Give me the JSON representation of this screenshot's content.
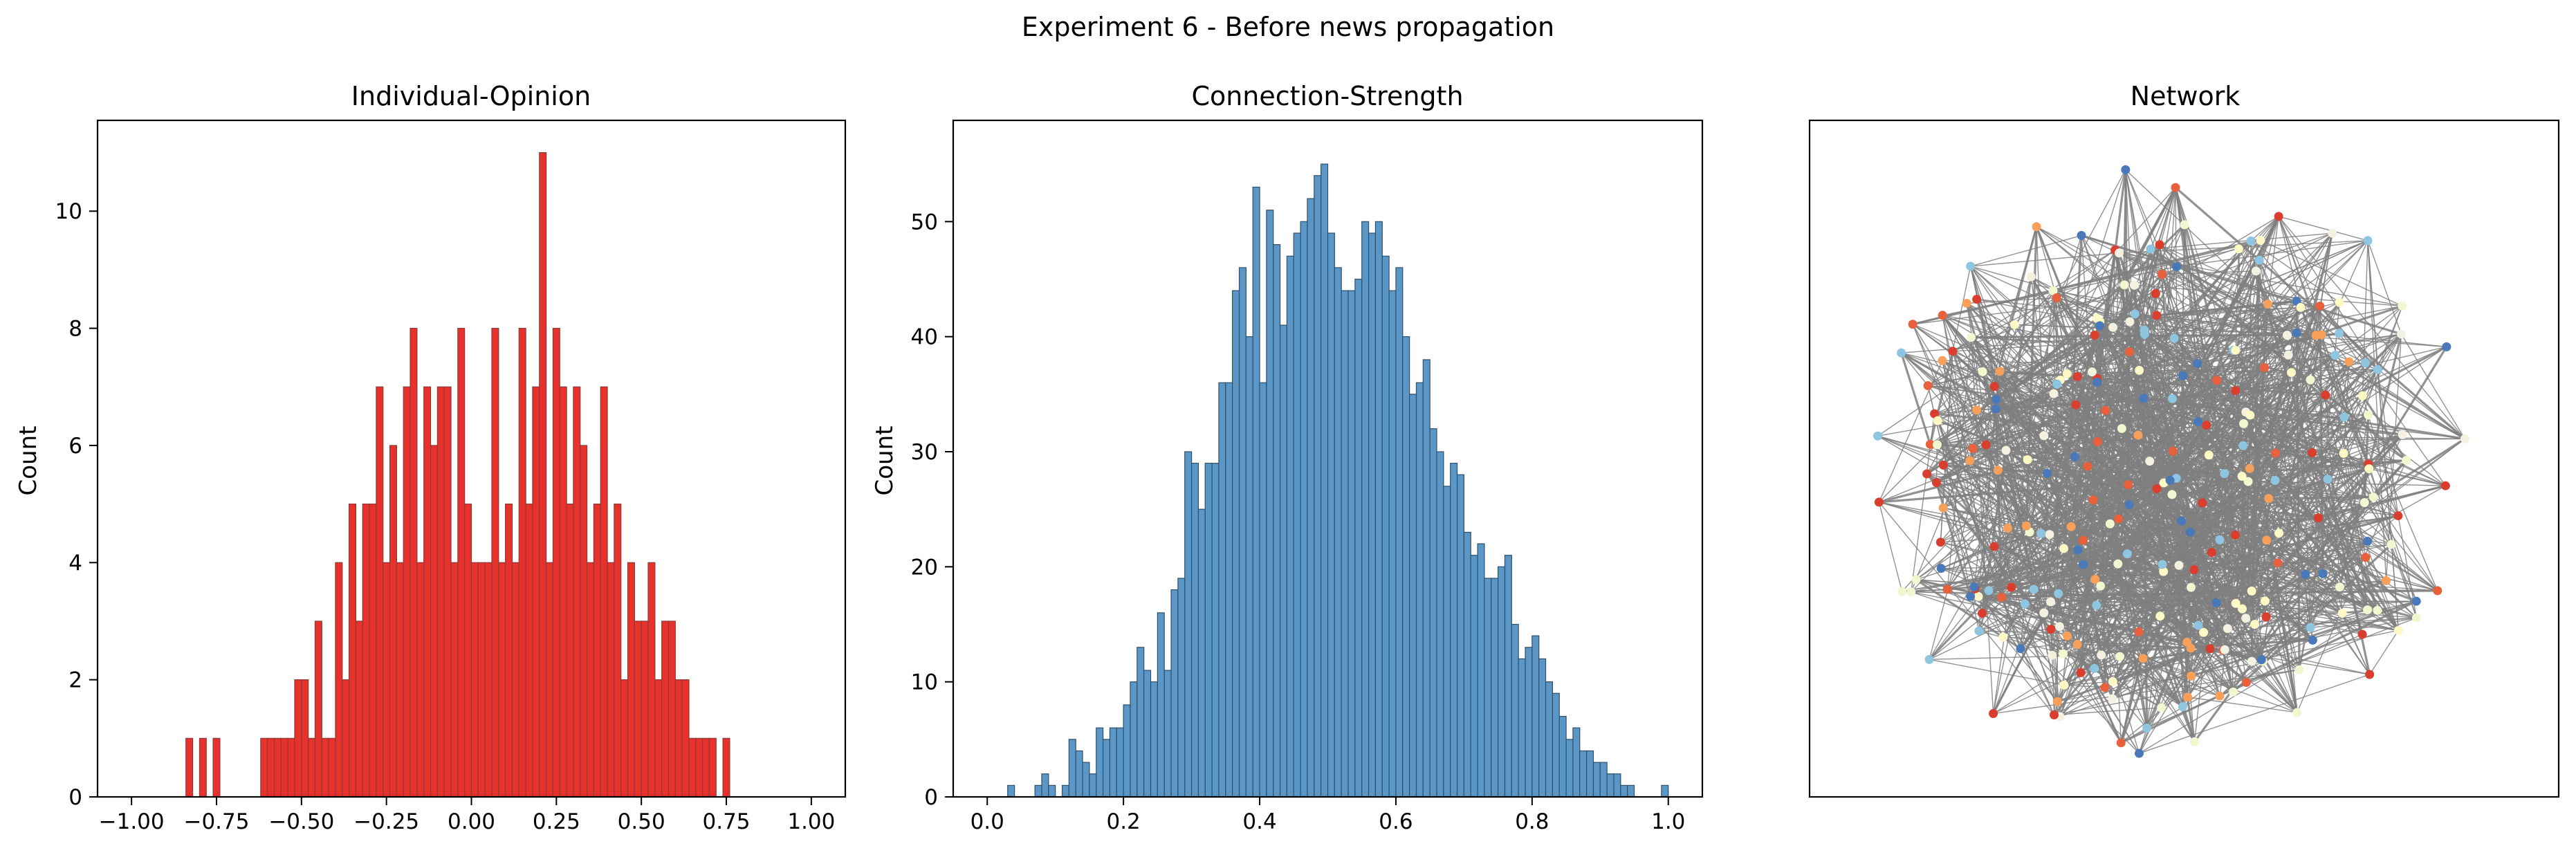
{
  "suptitle": "Experiment 6 - Before news propagation",
  "chart_data": [
    {
      "type": "bar",
      "title": "Individual-Opinion",
      "xlabel": "",
      "ylabel": "Count",
      "xlim": [
        -1.1,
        1.1
      ],
      "ylim": [
        0,
        11.55
      ],
      "xticks": [
        -1.0,
        -0.75,
        -0.5,
        -0.25,
        0.0,
        0.25,
        0.5,
        0.75,
        1.0
      ],
      "xtick_labels": [
        "−1.00",
        "−0.75",
        "−0.50",
        "−0.25",
        "0.00",
        "0.25",
        "0.50",
        "0.75",
        "1.00"
      ],
      "yticks": [
        0,
        2,
        4,
        6,
        8,
        10
      ],
      "ytick_labels": [
        "0",
        "2",
        "4",
        "6",
        "8",
        "10"
      ],
      "bin_range": [
        -1.0,
        1.0
      ],
      "bin_count": 100,
      "bar_color": "#e8312a",
      "edge_color": "#8a3a3a",
      "counts": [
        0,
        0,
        0,
        0,
        0,
        0,
        0,
        0,
        1,
        0,
        1,
        0,
        1,
        0,
        0,
        0,
        0,
        0,
        0,
        1,
        1,
        1,
        1,
        1,
        2,
        2,
        1,
        3,
        1,
        1,
        4,
        2,
        5,
        3,
        5,
        5,
        7,
        4,
        6,
        4,
        7,
        8,
        4,
        7,
        6,
        7,
        7,
        4,
        8,
        5,
        4,
        4,
        4,
        8,
        4,
        5,
        4,
        8,
        5,
        7,
        11,
        4,
        8,
        7,
        5,
        7,
        6,
        4,
        5,
        7,
        4,
        5,
        2,
        4,
        3,
        3,
        4,
        2,
        3,
        3,
        2,
        2,
        1,
        1,
        1,
        1,
        0,
        1,
        0,
        0,
        0,
        0,
        0,
        0,
        0,
        0,
        0,
        0,
        0,
        0
      ]
    },
    {
      "type": "bar",
      "title": "Connection-Strength",
      "xlabel": "",
      "ylabel": "Count",
      "xlim": [
        -0.05,
        1.05
      ],
      "ylim": [
        0,
        58.8
      ],
      "xticks": [
        0.0,
        0.2,
        0.4,
        0.6,
        0.8,
        1.0
      ],
      "xtick_labels": [
        "0.0",
        "0.2",
        "0.4",
        "0.6",
        "0.8",
        "1.0"
      ],
      "yticks": [
        0,
        10,
        20,
        30,
        40,
        50
      ],
      "ytick_labels": [
        "0",
        "10",
        "20",
        "30",
        "40",
        "50"
      ],
      "bin_range": [
        0.0,
        1.0
      ],
      "bin_count": 100,
      "bar_color": "#5b97c6",
      "edge_color": "#2f4f6a",
      "counts": [
        0,
        0,
        0,
        1,
        0,
        0,
        0,
        1,
        2,
        1,
        0,
        1,
        5,
        4,
        3,
        2,
        6,
        5,
        6,
        6,
        8,
        10,
        13,
        11,
        10,
        16,
        11,
        18,
        19,
        30,
        29,
        25,
        29,
        29,
        36,
        36,
        44,
        46,
        40,
        53,
        36,
        51,
        48,
        41,
        47,
        49,
        50,
        52,
        54,
        55,
        49,
        46,
        44,
        44,
        45,
        50,
        49,
        50,
        47,
        44,
        46,
        40,
        35,
        36,
        38,
        32,
        30,
        27,
        29,
        28,
        23,
        21,
        22,
        19,
        19,
        20,
        21,
        15,
        12,
        13,
        14,
        12,
        10,
        9,
        7,
        5,
        6,
        4,
        4,
        3,
        3,
        2,
        2,
        1,
        1,
        0,
        0,
        0,
        0,
        1
      ]
    },
    {
      "type": "network",
      "title": "Network",
      "node_colors": [
        "#4a79b9",
        "#8ec5e0",
        "#f2f7d0",
        "#fdf9c4",
        "#f4f1e0",
        "#f8a05a",
        "#e8603c",
        "#d93e2e"
      ],
      "edge_color": "#7f7f7f"
    }
  ]
}
